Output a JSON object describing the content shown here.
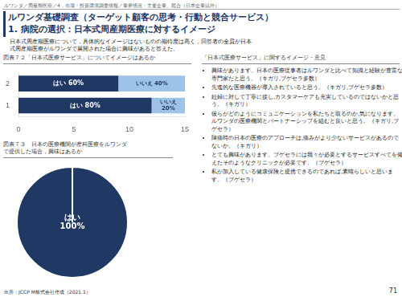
{
  "header": "ルワンダ／周産期医療／4．市場・投資環境調査情報／業界情況・主要企業、競合（日本企業以外）",
  "title": [
    "ルワンダ基礎調査（ターゲット顧客の思考・行動と競合サービス）",
    "1. 病院の選択：日本式周産期医療に対するイメージ"
  ],
  "subtitle": [
    "　日本式周産期医療について，具体的なイメージはないものの期待度は高く，回答者の全員が日本",
    "　式周産期医療がルワンダで展開された場合に興味があると答えた。"
  ],
  "chart_data": [
    {
      "type": "bar",
      "title": "図表７２「日本式医療サービス」についてイメージはあるか",
      "orientation": "horizontal",
      "stacked": true,
      "categories": [
        "2",
        "1"
      ],
      "series": [
        {
          "color": "#1F3864",
          "values": [
            9,
            12
          ],
          "value_labels": [
            "はい 60%",
            "はい 80%"
          ]
        },
        {
          "color": "#9DC3E6",
          "values": [
            6,
            3
          ],
          "value_labels": [
            "いいえ 40%",
            "いいえ\n20%"
          ]
        }
      ],
      "xlim": [
        0,
        15
      ],
      "xticks": [
        0,
        5,
        10,
        15
      ],
      "grid": false,
      "data_labels": true
    },
    {
      "type": "pie",
      "title": [
        "図表７３　日本の医療機関が産科医療をルワンダ",
        "で提供した場合，興味はあるか"
      ],
      "values": [
        100
      ],
      "value_labels": [
        "はい\n100%"
      ],
      "colors": [
        "#1F3864"
      ],
      "data_labels": true
    }
  ],
  "notes_title": "「日本式医療サービス」に関するイメージ・意見",
  "notes": [
    "興味があります。日本の医療従事者はルワンダと比べて知識と経験が豊富な専門家だと思う。（キガリ,ブゲセラ多数）",
    "先進的な医療機器が導入されていると思う。（キガリ,ブゲセラ多数）",
    "妊婦に対して丁寧に接し,カスタマーケアも充実しているのではないかと思う。（キガリ）",
    "彼らがどのようにコミュニケーションを私たちと取るのか,気になります。ルワンダの医療機関とパートナーシップを組むと良いと思う。（キガリ,ブゲセラ）",
    "陣痛時の日本の医療のアプローチは,痛みがより少ないサービスがあるのでないか。（キガリ）",
    "とても興味があります。ブゲセラには我々が必要とするサービスすべてを備えたそのようなクリニックが必要です。（ブゲセラ）",
    "私が加入している健康保険と提携できるのであれば,素晴らしいと思います。（ブゲセラ）"
  ],
  "footer": "出所：JCCP M株式会社作成（2021.1）",
  "page_number": "71"
}
